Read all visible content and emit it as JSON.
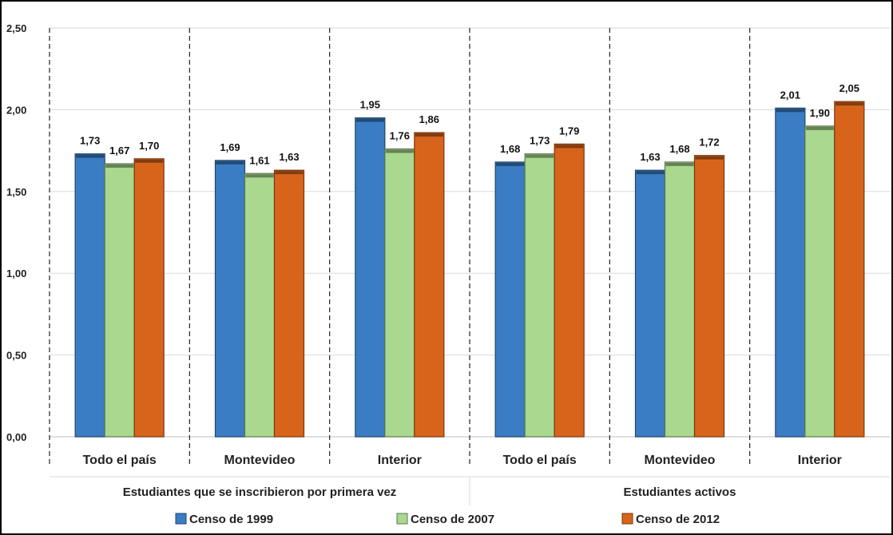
{
  "chart_data": {
    "type": "bar",
    "title": "",
    "xlabel": "",
    "ylabel": "",
    "ylim": [
      0,
      2.5
    ],
    "yticks": [
      "0,00",
      "0,50",
      "1,00",
      "1,50",
      "2,00",
      "2,50"
    ],
    "ytick_values": [
      0,
      0.5,
      1.0,
      1.5,
      2.0,
      2.5
    ],
    "grid": true,
    "legend_position": "bottom",
    "groups": [
      {
        "label": "Estudiantes que se inscribieron por primera vez",
        "categories": [
          "Todo el país",
          "Montevideo",
          "Interior"
        ]
      },
      {
        "label": "Estudiantes activos",
        "categories": [
          "Todo el país",
          "Montevideo",
          "Interior"
        ]
      }
    ],
    "categories": [
      "Todo el país",
      "Montevideo",
      "Interior",
      "Todo el país",
      "Montevideo",
      "Interior"
    ],
    "series": [
      {
        "name": "Censo de 1999",
        "color": "#3a7dc4",
        "values": [
          1.73,
          1.69,
          1.95,
          1.68,
          1.63,
          2.01
        ],
        "labels": [
          "1,73",
          "1,69",
          "1,95",
          "1,68",
          "1,63",
          "2,01"
        ]
      },
      {
        "name": "Censo de 2007",
        "color": "#a9d88e",
        "values": [
          1.67,
          1.61,
          1.76,
          1.73,
          1.68,
          1.9
        ],
        "labels": [
          "1,67",
          "1,61",
          "1,76",
          "1,73",
          "1,68",
          "1,90"
        ]
      },
      {
        "name": "Censo de 2012",
        "color": "#d8641c",
        "values": [
          1.7,
          1.63,
          1.86,
          1.79,
          1.72,
          2.05
        ],
        "labels": [
          "1,70",
          "1,63",
          "1,86",
          "1,79",
          "1,72",
          "2,05"
        ]
      }
    ]
  }
}
